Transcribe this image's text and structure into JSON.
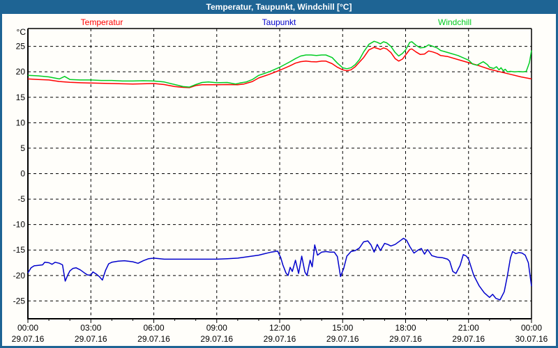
{
  "window": {
    "title": "Temperatur, Taupunkt, Windchill [°C]",
    "titlebar_color": "#1e6494",
    "frame_color": "#1e6494",
    "background_color": "#fffefa"
  },
  "chart_data": {
    "type": "line",
    "title": "Temperatur, Taupunkt, Windchill [°C]",
    "ylabel": "°C",
    "xlabel": "",
    "xlim_hours": [
      0,
      24
    ],
    "ylim": [
      -28.5,
      28.5
    ],
    "grid": "dashed",
    "legend_position": "top",
    "y_ticks": [
      25,
      20,
      15,
      10,
      5,
      0,
      -5,
      -10,
      -15,
      -20,
      -25
    ],
    "x_ticks": [
      {
        "h": 0,
        "time": "00:00",
        "date": "29.07.16"
      },
      {
        "h": 3,
        "time": "03:00",
        "date": "29.07.16"
      },
      {
        "h": 6,
        "time": "06:00",
        "date": "29.07.16"
      },
      {
        "h": 9,
        "time": "09:00",
        "date": "29.07.16"
      },
      {
        "h": 12,
        "time": "12:00",
        "date": "29.07.16"
      },
      {
        "h": 15,
        "time": "15:00",
        "date": "29.07.16"
      },
      {
        "h": 18,
        "time": "18:00",
        "date": "29.07.16"
      },
      {
        "h": 21,
        "time": "21:00",
        "date": "29.07.16"
      },
      {
        "h": 24,
        "time": "00:00",
        "date": "30.07.16"
      }
    ],
    "minor_x_tick_step_hours": 1,
    "series": [
      {
        "name": "Temperatur",
        "color": "#ff0000",
        "points": [
          [
            0,
            18.6
          ],
          [
            0.5,
            18.5
          ],
          [
            1,
            18.4
          ],
          [
            1.5,
            18.1
          ],
          [
            2,
            17.95
          ],
          [
            2.5,
            17.85
          ],
          [
            3,
            17.8
          ],
          [
            3.5,
            17.75
          ],
          [
            4,
            17.7
          ],
          [
            4.5,
            17.65
          ],
          [
            5,
            17.6
          ],
          [
            5.5,
            17.65
          ],
          [
            6,
            17.7
          ],
          [
            6.5,
            17.5
          ],
          [
            7,
            17.1
          ],
          [
            7.4,
            16.95
          ],
          [
            7.7,
            16.9
          ],
          [
            8,
            17.3
          ],
          [
            8.3,
            17.45
          ],
          [
            9,
            17.45
          ],
          [
            9.5,
            17.5
          ],
          [
            10,
            17.45
          ],
          [
            10.3,
            17.6
          ],
          [
            10.7,
            18.1
          ],
          [
            11,
            18.8
          ],
          [
            11.5,
            19.5
          ],
          [
            12,
            20.3
          ],
          [
            12.5,
            21.2
          ],
          [
            12.75,
            21.7
          ],
          [
            13,
            22.0
          ],
          [
            13.25,
            22.1
          ],
          [
            13.5,
            22.0
          ],
          [
            13.75,
            21.95
          ],
          [
            14,
            22.1
          ],
          [
            14.2,
            22.1
          ],
          [
            14.5,
            21.6
          ],
          [
            14.75,
            20.9
          ],
          [
            15,
            20.4
          ],
          [
            15.2,
            20.2
          ],
          [
            15.4,
            20.4
          ],
          [
            15.6,
            21.0
          ],
          [
            15.8,
            21.9
          ],
          [
            16,
            22.8
          ],
          [
            16.25,
            24.3
          ],
          [
            16.5,
            24.8
          ],
          [
            16.65,
            24.6
          ],
          [
            16.8,
            24.4
          ],
          [
            16.95,
            24.7
          ],
          [
            17.1,
            24.5
          ],
          [
            17.3,
            23.8
          ],
          [
            17.5,
            22.6
          ],
          [
            17.67,
            22.1
          ],
          [
            17.85,
            22.5
          ],
          [
            18,
            23.3
          ],
          [
            18.2,
            24.4
          ],
          [
            18.3,
            24.5
          ],
          [
            18.5,
            23.9
          ],
          [
            18.7,
            23.4
          ],
          [
            18.9,
            23.5
          ],
          [
            19.1,
            24.1
          ],
          [
            19.3,
            23.9
          ],
          [
            19.5,
            23.6
          ],
          [
            19.67,
            23.2
          ],
          [
            20,
            23.0
          ],
          [
            20.5,
            22.4
          ],
          [
            21,
            21.8
          ],
          [
            21.5,
            21.2
          ],
          [
            22,
            20.5
          ],
          [
            22.5,
            20.0
          ],
          [
            23,
            19.5
          ],
          [
            23.5,
            19.0
          ],
          [
            24,
            18.6
          ]
        ]
      },
      {
        "name": "Taupunkt",
        "color": "#0000cc",
        "points": [
          [
            0,
            -19.5
          ],
          [
            0.15,
            -18.5
          ],
          [
            0.3,
            -18.1
          ],
          [
            0.5,
            -18.0
          ],
          [
            0.7,
            -17.9
          ],
          [
            0.8,
            -17.4
          ],
          [
            1,
            -17.5
          ],
          [
            1.15,
            -17.8
          ],
          [
            1.3,
            -17.4
          ],
          [
            1.5,
            -17.6
          ],
          [
            1.65,
            -17.9
          ],
          [
            1.78,
            -21.1
          ],
          [
            1.9,
            -19.9
          ],
          [
            2,
            -19.1
          ],
          [
            2.15,
            -18.6
          ],
          [
            2.3,
            -18.5
          ],
          [
            2.5,
            -18.9
          ],
          [
            2.7,
            -19.5
          ],
          [
            2.85,
            -19.9
          ],
          [
            3,
            -19.9
          ],
          [
            3.1,
            -19.3
          ],
          [
            3.25,
            -19.7
          ],
          [
            3.4,
            -20.2
          ],
          [
            3.55,
            -20.9
          ],
          [
            3.7,
            -19.0
          ],
          [
            3.85,
            -17.7
          ],
          [
            4,
            -17.4
          ],
          [
            4.3,
            -17.2
          ],
          [
            4.6,
            -17.1
          ],
          [
            5,
            -17.3
          ],
          [
            5.25,
            -17.6
          ],
          [
            5.5,
            -17.1
          ],
          [
            5.75,
            -16.7
          ],
          [
            6,
            -16.6
          ],
          [
            6.5,
            -16.8
          ],
          [
            7,
            -16.8
          ],
          [
            7.5,
            -16.8
          ],
          [
            8,
            -16.8
          ],
          [
            8.5,
            -16.8
          ],
          [
            9,
            -16.8
          ],
          [
            9.5,
            -16.7
          ],
          [
            10,
            -16.6
          ],
          [
            10.5,
            -16.3
          ],
          [
            11,
            -16.0
          ],
          [
            11.3,
            -15.7
          ],
          [
            11.6,
            -15.4
          ],
          [
            11.9,
            -15.2
          ],
          [
            12.05,
            -16.5
          ],
          [
            12.15,
            -17.9
          ],
          [
            12.3,
            -19.5
          ],
          [
            12.4,
            -20.0
          ],
          [
            12.5,
            -18.4
          ],
          [
            12.6,
            -19.2
          ],
          [
            12.75,
            -17.0
          ],
          [
            12.9,
            -19.6
          ],
          [
            13.05,
            -16.2
          ],
          [
            13.2,
            -19.3
          ],
          [
            13.3,
            -20.0
          ],
          [
            13.45,
            -17.0
          ],
          [
            13.55,
            -18.3
          ],
          [
            13.67,
            -14.0
          ],
          [
            13.8,
            -16.0
          ],
          [
            14,
            -15.4
          ],
          [
            14.2,
            -15.3
          ],
          [
            14.4,
            -15.4
          ],
          [
            14.6,
            -15.4
          ],
          [
            14.75,
            -16.3
          ],
          [
            14.9,
            -20.2
          ],
          [
            15.05,
            -18.6
          ],
          [
            15.2,
            -16.2
          ],
          [
            15.4,
            -15.3
          ],
          [
            15.6,
            -15.1
          ],
          [
            15.8,
            -14.6
          ],
          [
            16,
            -13.4
          ],
          [
            16.2,
            -13.2
          ],
          [
            16.35,
            -14.0
          ],
          [
            16.5,
            -15.4
          ],
          [
            16.65,
            -13.9
          ],
          [
            16.8,
            -15.1
          ],
          [
            17,
            -13.7
          ],
          [
            17.15,
            -13.9
          ],
          [
            17.3,
            -14.2
          ],
          [
            17.5,
            -13.9
          ],
          [
            17.7,
            -13.3
          ],
          [
            17.9,
            -12.7
          ],
          [
            18.05,
            -13.1
          ],
          [
            18.2,
            -14.3
          ],
          [
            18.4,
            -15.6
          ],
          [
            18.6,
            -15.0
          ],
          [
            18.75,
            -14.7
          ],
          [
            18.9,
            -15.8
          ],
          [
            19.05,
            -14.9
          ],
          [
            19.25,
            -16.1
          ],
          [
            19.5,
            -16.4
          ],
          [
            19.75,
            -16.5
          ],
          [
            20,
            -16.8
          ],
          [
            20.1,
            -17.2
          ],
          [
            20.25,
            -19.2
          ],
          [
            20.4,
            -19.6
          ],
          [
            20.6,
            -18.0
          ],
          [
            20.75,
            -15.9
          ],
          [
            20.9,
            -16.2
          ],
          [
            21,
            -16.8
          ],
          [
            21.25,
            -20.0
          ],
          [
            21.5,
            -22.0
          ],
          [
            21.75,
            -23.4
          ],
          [
            22,
            -24.3
          ],
          [
            22.15,
            -23.7
          ],
          [
            22.3,
            -24.5
          ],
          [
            22.5,
            -24.8
          ],
          [
            22.7,
            -23.2
          ],
          [
            22.85,
            -20.1
          ],
          [
            23,
            -16.5
          ],
          [
            23.1,
            -15.3
          ],
          [
            23.25,
            -15.7
          ],
          [
            23.4,
            -15.5
          ],
          [
            23.55,
            -15.6
          ],
          [
            23.7,
            -16.0
          ],
          [
            23.85,
            -17.5
          ],
          [
            24,
            -22.1
          ]
        ]
      },
      {
        "name": "Windchill",
        "color": "#00cc22",
        "points": [
          [
            0,
            19.3
          ],
          [
            0.5,
            19.2
          ],
          [
            1,
            19.0
          ],
          [
            1.5,
            18.6
          ],
          [
            1.75,
            19.1
          ],
          [
            2,
            18.5
          ],
          [
            2.5,
            18.4
          ],
          [
            3,
            18.4
          ],
          [
            3.5,
            18.3
          ],
          [
            4,
            18.3
          ],
          [
            4.5,
            18.2
          ],
          [
            5,
            18.2
          ],
          [
            5.5,
            18.25
          ],
          [
            6,
            18.2
          ],
          [
            6.5,
            18.0
          ],
          [
            7,
            17.5
          ],
          [
            7.4,
            17.1
          ],
          [
            7.7,
            17.0
          ],
          [
            8,
            17.5
          ],
          [
            8.3,
            17.9
          ],
          [
            8.6,
            18.0
          ],
          [
            9,
            17.85
          ],
          [
            9.5,
            17.9
          ],
          [
            9.9,
            17.6
          ],
          [
            10.1,
            17.8
          ],
          [
            10.4,
            18.0
          ],
          [
            10.7,
            18.5
          ],
          [
            11,
            19.3
          ],
          [
            11.5,
            20.0
          ],
          [
            12,
            20.9
          ],
          [
            12.5,
            22.0
          ],
          [
            12.75,
            22.6
          ],
          [
            13,
            23.1
          ],
          [
            13.25,
            23.3
          ],
          [
            13.5,
            23.3
          ],
          [
            13.75,
            23.2
          ],
          [
            14,
            23.3
          ],
          [
            14.2,
            23.3
          ],
          [
            14.5,
            22.8
          ],
          [
            14.75,
            21.7
          ],
          [
            15,
            20.8
          ],
          [
            15.2,
            20.6
          ],
          [
            15.4,
            20.8
          ],
          [
            15.6,
            21.4
          ],
          [
            15.8,
            22.4
          ],
          [
            16,
            23.9
          ],
          [
            16.25,
            25.4
          ],
          [
            16.5,
            26.0
          ],
          [
            16.65,
            25.8
          ],
          [
            16.8,
            25.5
          ],
          [
            16.95,
            25.9
          ],
          [
            17.1,
            25.7
          ],
          [
            17.3,
            25.0
          ],
          [
            17.5,
            23.8
          ],
          [
            17.67,
            23.1
          ],
          [
            17.85,
            23.6
          ],
          [
            18,
            24.3
          ],
          [
            18.2,
            25.8
          ],
          [
            18.3,
            25.9
          ],
          [
            18.5,
            25.2
          ],
          [
            18.7,
            24.7
          ],
          [
            18.9,
            24.8
          ],
          [
            19.1,
            25.3
          ],
          [
            19.3,
            25.0
          ],
          [
            19.5,
            24.7
          ],
          [
            19.67,
            24.2
          ],
          [
            20,
            23.8
          ],
          [
            20.5,
            23.2
          ],
          [
            21,
            22.3
          ],
          [
            21.2,
            21.5
          ],
          [
            21.4,
            21.3
          ],
          [
            21.7,
            22.0
          ],
          [
            21.9,
            21.4
          ],
          [
            22,
            20.9
          ],
          [
            22.2,
            20.65
          ],
          [
            22.33,
            21.0
          ],
          [
            22.45,
            20.4
          ],
          [
            22.55,
            20.8
          ],
          [
            22.65,
            20.2
          ],
          [
            22.75,
            20.5
          ],
          [
            22.85,
            20.0
          ],
          [
            23,
            20.1
          ],
          [
            23.2,
            20.0
          ],
          [
            23.4,
            20.05
          ],
          [
            23.6,
            20.0
          ],
          [
            23.75,
            20.1
          ],
          [
            23.9,
            21.8
          ],
          [
            24,
            24.2
          ]
        ]
      }
    ]
  }
}
